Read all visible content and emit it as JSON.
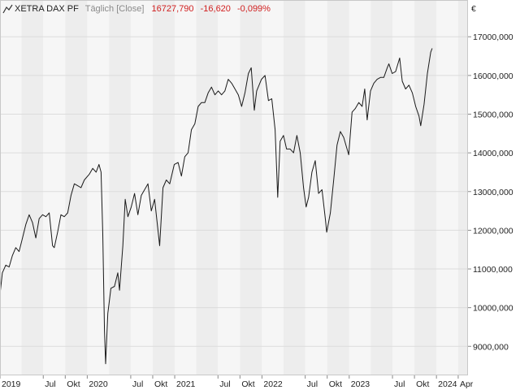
{
  "header": {
    "icon": "line-chart-icon",
    "instrument": "XETRA DAX PF",
    "interval": "Täglich [Close]",
    "last": "16727,790",
    "change": "-16,620",
    "change_pct": "-0,099%",
    "currency": "€"
  },
  "colors": {
    "line": "#1a1a1a",
    "negative": "#d11f1f",
    "band_dark": "#ededed",
    "band_light": "#f6f6f6",
    "grid": "#dcdcdc",
    "muted_text": "#8a8a8a"
  },
  "chart_data": {
    "type": "line",
    "title": "XETRA DAX PF",
    "xlabel": "",
    "ylabel": "",
    "currency": "€",
    "xlim": [
      "2019-01-01",
      "2024-05-12"
    ],
    "ylim": [
      8250,
      17950
    ],
    "y_scale": "linear",
    "grid": true,
    "y_ticks": [
      9000,
      10000,
      11000,
      12000,
      13000,
      14000,
      15000,
      16000,
      17000
    ],
    "y_tick_labels": [
      "9000,000",
      "10000,000",
      "11000,000",
      "12000,000",
      "13000,000",
      "14000,000",
      "15000,000",
      "16000,000",
      "17000,000"
    ],
    "x_ticks": [
      {
        "date": "2019-01-01",
        "label": "2019"
      },
      {
        "date": "2019-07-01",
        "label": "Jul"
      },
      {
        "date": "2019-10-01",
        "label": "Okt"
      },
      {
        "date": "2020-01-01",
        "label": "2020"
      },
      {
        "date": "2020-07-01",
        "label": "Jul"
      },
      {
        "date": "2020-10-01",
        "label": "Okt"
      },
      {
        "date": "2021-01-01",
        "label": "2021"
      },
      {
        "date": "2021-07-01",
        "label": "Jul"
      },
      {
        "date": "2021-10-01",
        "label": "Okt"
      },
      {
        "date": "2022-01-01",
        "label": "2022"
      },
      {
        "date": "2022-07-01",
        "label": "Jul"
      },
      {
        "date": "2022-10-01",
        "label": "Okt"
      },
      {
        "date": "2023-01-01",
        "label": "2023"
      },
      {
        "date": "2023-07-01",
        "label": "Jul"
      },
      {
        "date": "2023-10-01",
        "label": "Okt"
      },
      {
        "date": "2024-01-01",
        "label": "2024"
      },
      {
        "date": "2024-04-01",
        "label": "Apr"
      }
    ],
    "series": [
      {
        "values_x": [
          "2019-01-02",
          "2019-01-11",
          "2019-01-25",
          "2019-02-08",
          "2019-02-22",
          "2019-03-08",
          "2019-03-22",
          "2019-04-05",
          "2019-04-19",
          "2019-05-03",
          "2019-05-17",
          "2019-05-31",
          "2019-06-14",
          "2019-06-28",
          "2019-07-12",
          "2019-07-26",
          "2019-08-09",
          "2019-08-16",
          "2019-08-30",
          "2019-09-13",
          "2019-09-27",
          "2019-10-11",
          "2019-10-25",
          "2019-11-08",
          "2019-11-22",
          "2019-12-06",
          "2019-12-20",
          "2020-01-10",
          "2020-01-24",
          "2020-02-07",
          "2020-02-19",
          "2020-02-28",
          "2020-03-06",
          "2020-03-13",
          "2020-03-18",
          "2020-03-27",
          "2020-04-09",
          "2020-04-24",
          "2020-05-08",
          "2020-05-15",
          "2020-05-29",
          "2020-06-08",
          "2020-06-19",
          "2020-07-03",
          "2020-07-17",
          "2020-07-31",
          "2020-08-14",
          "2020-08-28",
          "2020-09-11",
          "2020-09-25",
          "2020-10-09",
          "2020-10-30",
          "2020-11-13",
          "2020-11-27",
          "2020-12-11",
          "2020-12-30",
          "2021-01-15",
          "2021-01-29",
          "2021-02-12",
          "2021-02-26",
          "2021-03-12",
          "2021-03-26",
          "2021-04-09",
          "2021-04-23",
          "2021-05-07",
          "2021-05-21",
          "2021-06-04",
          "2021-06-18",
          "2021-07-02",
          "2021-07-16",
          "2021-07-30",
          "2021-08-13",
          "2021-08-27",
          "2021-09-10",
          "2021-09-24",
          "2021-10-08",
          "2021-10-22",
          "2021-11-05",
          "2021-11-17",
          "2021-11-30",
          "2021-12-10",
          "2021-12-30",
          "2022-01-14",
          "2022-01-28",
          "2022-02-11",
          "2022-02-25",
          "2022-03-08",
          "2022-03-18",
          "2022-04-01",
          "2022-04-14",
          "2022-04-29",
          "2022-05-13",
          "2022-05-27",
          "2022-06-10",
          "2022-06-24",
          "2022-07-05",
          "2022-07-15",
          "2022-07-29",
          "2022-08-12",
          "2022-08-26",
          "2022-09-09",
          "2022-09-23",
          "2022-09-29",
          "2022-10-14",
          "2022-10-28",
          "2022-11-11",
          "2022-11-25",
          "2022-12-09",
          "2022-12-30",
          "2023-01-13",
          "2023-01-27",
          "2023-02-10",
          "2023-02-24",
          "2023-03-07",
          "2023-03-17",
          "2023-03-31",
          "2023-04-14",
          "2023-04-28",
          "2023-05-12",
          "2023-05-26",
          "2023-06-09",
          "2023-06-16",
          "2023-06-30",
          "2023-07-14",
          "2023-07-31",
          "2023-08-11",
          "2023-08-25",
          "2023-09-08",
          "2023-09-22",
          "2023-10-06",
          "2023-10-20",
          "2023-10-27",
          "2023-11-10",
          "2023-11-24",
          "2023-12-08",
          "2023-12-14"
        ],
        "values_y": [
          10400,
          10900,
          11100,
          11050,
          11350,
          11550,
          11450,
          11800,
          12150,
          12400,
          12200,
          11800,
          12300,
          12400,
          12350,
          12450,
          11600,
          11550,
          11950,
          12400,
          12350,
          12450,
          12900,
          13200,
          13150,
          13100,
          13300,
          13450,
          13600,
          13500,
          13700,
          13500,
          11900,
          9400,
          8550,
          9850,
          10500,
          10550,
          10900,
          10450,
          11600,
          12800,
          12350,
          12600,
          12950,
          12400,
          12900,
          13050,
          13200,
          12500,
          12800,
          11600,
          13100,
          13300,
          13200,
          13700,
          13750,
          13400,
          13900,
          14000,
          14600,
          14750,
          15200,
          15300,
          15300,
          15550,
          15700,
          15500,
          15600,
          15500,
          15600,
          15900,
          15800,
          15650,
          15500,
          15200,
          15550,
          16050,
          16200,
          15100,
          15600,
          15900,
          16000,
          15350,
          15400,
          14600,
          12850,
          14300,
          14450,
          14100,
          14100,
          14000,
          14450,
          14000,
          13100,
          12600,
          12850,
          13500,
          13800,
          12950,
          13050,
          12300,
          11950,
          12450,
          13300,
          14200,
          14550,
          14400,
          13950,
          15050,
          15150,
          15300,
          15200,
          15650,
          14850,
          15600,
          15800,
          15900,
          15950,
          15950,
          16200,
          16300,
          16050,
          16100,
          16450,
          15850,
          15650,
          15750,
          15550,
          15200,
          14950,
          14700,
          15250,
          16050,
          16600,
          16700
        ]
      }
    ]
  }
}
